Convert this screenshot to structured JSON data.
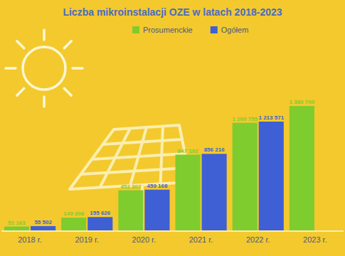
{
  "chart_data": {
    "type": "bar",
    "title": "Liczba mikroinstalacji OZE w latach 2018-2023",
    "categories": [
      "2018 r.",
      "2019 r.",
      "2020 r.",
      "2021 r.",
      "2022 r.",
      "2023 r."
    ],
    "series": [
      {
        "name": "Prosumenckie",
        "color": "#7fcc2e",
        "values": [
          51163,
          149308,
          452307,
          847192,
          1200755,
          1386700
        ],
        "value_labels": [
          "51 163",
          "149 308",
          "452 307",
          "847 192",
          "1 200 755",
          "1 386 700"
        ]
      },
      {
        "name": "Ogółem",
        "color": "#3f5fd4",
        "values": [
          55502,
          155626,
          459168,
          856216,
          1213571,
          null
        ],
        "value_labels": [
          "55 502",
          "155 626",
          "459 168",
          "856 216",
          "1 213 571",
          null
        ]
      }
    ],
    "ylim": [
      0,
      1600000
    ],
    "grid": false,
    "legend": "top",
    "data_labels": true,
    "tick_labels": "x"
  }
}
